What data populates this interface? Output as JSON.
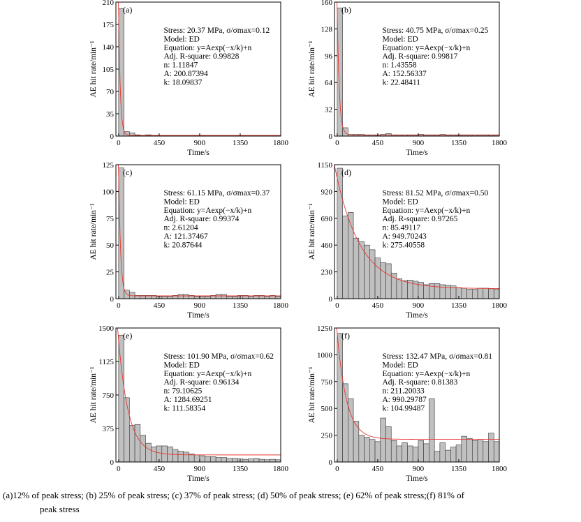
{
  "caption": {
    "line1": "(a)12%  of peak stress; (b) 25% of peak stress; (c) 37% of peak stress; (d) 50% of peak stress; (e) 62% of peak stress;(f) 81% of",
    "line2": "peak stress"
  },
  "colors": {
    "bar_fill": "#c0c0c0",
    "bar_stroke": "#333333",
    "fit_line": "#e8372f",
    "axis": "#000000"
  },
  "chart_data": [
    {
      "type": "bar",
      "panel": "(a)",
      "xlabel": "Time/s",
      "ylabel": "AE hit rate/min⁻¹",
      "xlim": [
        -30,
        1800
      ],
      "ylim": [
        0,
        210
      ],
      "xticks": [
        0,
        450,
        900,
        1350,
        1800
      ],
      "yticks": [
        0,
        35,
        70,
        105,
        140,
        175,
        210
      ],
      "bin_width": 60,
      "x": [
        0,
        60,
        120,
        180,
        240,
        300,
        360,
        420,
        480,
        540,
        600,
        660,
        720,
        780,
        840,
        900,
        960,
        1020,
        1080,
        1140,
        1200,
        1260,
        1320,
        1380,
        1440,
        1500,
        1560,
        1620,
        1680,
        1740
      ],
      "values": [
        200,
        7,
        5,
        2,
        1,
        2,
        1,
        1,
        1,
        1,
        1,
        1,
        1,
        1,
        1,
        1,
        1,
        1,
        1,
        1,
        1,
        1,
        1,
        1,
        1,
        1,
        1,
        1,
        1,
        1
      ],
      "fit": {
        "A": 200.87394,
        "k": 18.09837,
        "n": 1.11847
      },
      "annotation": [
        "Stress: 20.37 MPa, σ/σmax=0.12",
        "Model: ED",
        "Equation: y=Aexp(−x/k)+n",
        "Adj. R-square: 0.99828",
        "n: 1.11847",
        "A: 200.87394",
        "k: 18.09837"
      ]
    },
    {
      "type": "bar",
      "panel": "(b)",
      "xlabel": "Time/s",
      "ylabel": "AE hit rate/min⁻¹",
      "xlim": [
        -30,
        1800
      ],
      "ylim": [
        0,
        160
      ],
      "xticks": [
        0,
        450,
        900,
        1350,
        1800
      ],
      "yticks": [
        0,
        32,
        64,
        96,
        128,
        160
      ],
      "bin_width": 60,
      "x": [
        0,
        60,
        120,
        180,
        240,
        300,
        360,
        420,
        480,
        540,
        600,
        660,
        720,
        780,
        840,
        900,
        960,
        1020,
        1080,
        1140,
        1200,
        1260,
        1320,
        1380,
        1440,
        1500,
        1560,
        1620,
        1680,
        1740
      ],
      "values": [
        153,
        10,
        2,
        2,
        2,
        1,
        1,
        1,
        2,
        3,
        1,
        1,
        1,
        1,
        1,
        2,
        1,
        1,
        1,
        2,
        1,
        1,
        1,
        1,
        1,
        1,
        1,
        1,
        1,
        1
      ],
      "fit": {
        "A": 152.56337,
        "k": 22.48411,
        "n": 1.43558
      },
      "annotation": [
        "Stress: 40.75 MPa, σ/σmax=0.25",
        "Model: ED",
        "Equation: y=Aexp(−x/k)+n",
        "Adj. R-square: 0.99817",
        "n: 1.43558",
        "A: 152.56337",
        "k: 22.48411"
      ]
    },
    {
      "type": "bar",
      "panel": "(c)",
      "xlabel": "Time/s",
      "ylabel": "AE hit rate/min⁻¹",
      "xlim": [
        -30,
        1800
      ],
      "ylim": [
        0,
        125
      ],
      "xticks": [
        0,
        450,
        900,
        1350,
        1800
      ],
      "yticks": [
        0,
        25,
        50,
        75,
        100,
        125
      ],
      "bin_width": 60,
      "x": [
        0,
        60,
        120,
        180,
        240,
        300,
        360,
        420,
        480,
        540,
        600,
        660,
        720,
        780,
        840,
        900,
        960,
        1020,
        1080,
        1140,
        1200,
        1260,
        1320,
        1380,
        1440,
        1500,
        1560,
        1620,
        1680,
        1740
      ],
      "values": [
        122,
        8,
        6,
        3,
        3,
        3,
        3,
        2,
        2,
        2,
        3,
        4,
        4,
        3,
        2,
        2,
        2,
        3,
        4,
        4,
        2,
        2,
        3,
        3,
        2,
        3,
        3,
        2,
        3,
        2
      ],
      "fit": {
        "A": 121.37467,
        "k": 20.87644,
        "n": 2.61204
      },
      "annotation": [
        "Stress: 61.15 MPa, σ/σmax=0.37",
        "Model: ED",
        "Equation: y=Aexp(−x/k)+n",
        "Adj. R-square: 0.99374",
        "n: 2.61204",
        "A: 121.37467",
        "k: 20.87644"
      ]
    },
    {
      "type": "bar",
      "panel": "(d)",
      "xlabel": "Time/s",
      "ylabel": "AE hit rate/min⁻¹",
      "xlim": [
        -30,
        1800
      ],
      "ylim": [
        0,
        1150
      ],
      "xticks": [
        0,
        450,
        900,
        1350,
        1800
      ],
      "yticks": [
        0,
        230,
        460,
        690,
        920,
        1150
      ],
      "bin_width": 60,
      "x": [
        0,
        60,
        120,
        180,
        240,
        300,
        360,
        420,
        480,
        540,
        600,
        660,
        720,
        780,
        840,
        900,
        960,
        1020,
        1080,
        1140,
        1200,
        1260,
        1320,
        1380,
        1440,
        1500,
        1560,
        1620,
        1680,
        1740
      ],
      "values": [
        1120,
        710,
        740,
        520,
        490,
        460,
        420,
        350,
        310,
        300,
        220,
        170,
        155,
        160,
        150,
        140,
        120,
        130,
        130,
        120,
        115,
        110,
        95,
        90,
        80,
        80,
        90,
        90,
        85,
        80
      ],
      "fit": {
        "A": 949.70243,
        "k": 275.40558,
        "n": 85.49117
      },
      "annotation": [
        "Stress: 81.52 MPa, σ/σmax=0.50",
        "Model: ED",
        "Equation: y=Aexp(−x/k)+n",
        "Adj. R-square: 0.97265",
        "n: 85.49117",
        "A: 949.70243",
        "k: 275.40558"
      ]
    },
    {
      "type": "bar",
      "panel": "(e)",
      "xlabel": "Time/s",
      "ylabel": "AE hit rate/min⁻¹",
      "xlim": [
        -30,
        1800
      ],
      "ylim": [
        0,
        1500
      ],
      "xticks": [
        0,
        450,
        900,
        1350,
        1800
      ],
      "yticks": [
        0,
        375,
        750,
        1125,
        1500
      ],
      "bin_width": 60,
      "x": [
        0,
        60,
        120,
        180,
        240,
        300,
        360,
        420,
        480,
        540,
        600,
        660,
        720,
        780,
        840,
        900,
        960,
        1020,
        1080,
        1140,
        1200,
        1260,
        1320,
        1380,
        1440,
        1500,
        1560,
        1620,
        1680,
        1740
      ],
      "values": [
        1420,
        720,
        410,
        420,
        300,
        210,
        170,
        180,
        180,
        170,
        140,
        120,
        110,
        90,
        80,
        70,
        60,
        60,
        50,
        50,
        40,
        40,
        35,
        30,
        35,
        40,
        30,
        25,
        30,
        25
      ],
      "fit": {
        "A": 1284.69251,
        "k": 111.58354,
        "n": 79.10625
      },
      "annotation": [
        "Stress: 101.90 MPa, σ/σmax=0.62",
        "Model: ED",
        "Equation: y=Aexp(−x/k)+n",
        "Adj. R-square: 0.96134",
        "n: 79.10625",
        "A: 1284.69251",
        "k: 111.58354"
      ]
    },
    {
      "type": "bar",
      "panel": "(f)",
      "xlabel": "Time/s",
      "ylabel": "AE hit rate/min⁻¹",
      "xlim": [
        -30,
        1800
      ],
      "ylim": [
        0,
        1250
      ],
      "xticks": [
        0,
        450,
        900,
        1350,
        1800
      ],
      "yticks": [
        0,
        250,
        500,
        750,
        1000,
        1250
      ],
      "bin_width": 60,
      "x": [
        0,
        60,
        120,
        180,
        240,
        300,
        360,
        420,
        480,
        540,
        600,
        660,
        720,
        780,
        840,
        900,
        960,
        1020,
        1080,
        1140,
        1200,
        1260,
        1320,
        1380,
        1440,
        1500,
        1560,
        1620,
        1680,
        1740
      ],
      "values": [
        1200,
        730,
        590,
        380,
        250,
        230,
        210,
        190,
        410,
        330,
        200,
        150,
        180,
        150,
        140,
        200,
        170,
        590,
        100,
        180,
        110,
        140,
        160,
        240,
        220,
        200,
        210,
        190,
        270,
        190
      ],
      "fit": {
        "A": 990.29787,
        "k": 104.99487,
        "n": 211.20033
      },
      "annotation": [
        "Stress: 132.47 MPa, σ/σmax=0.81",
        "Model: ED",
        "Equation: y=Aexp(−x/k)+n",
        "Adj. R-square: 0.81383",
        "n: 211.20033",
        "A: 990.29787",
        "k: 104.99487"
      ]
    }
  ]
}
